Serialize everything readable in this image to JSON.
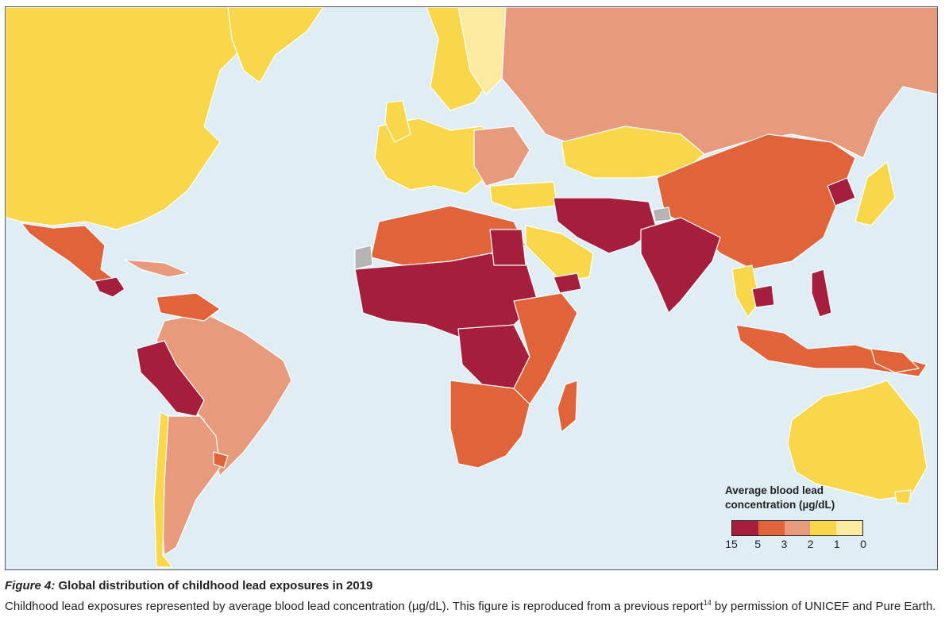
{
  "legend": {
    "title_line1": "Average blood lead",
    "title_line2": "concentration (µg/dL)",
    "ticks": [
      "15",
      "5",
      "3",
      "2",
      "1",
      "0"
    ],
    "colors": [
      "#a51f3c",
      "#e0633a",
      "#e89b7c",
      "#f8d84a",
      "#fbeaa0"
    ],
    "no_data_color": "#b4b4b4",
    "ocean_color": "#dfeef5"
  },
  "caption": {
    "figure_label": "Figure 4:",
    "title": "Global distribution of childhood lead exposures in 2019",
    "body_part1": "Childhood lead exposures represented by average blood lead concentration (µg/dL). This figure is reproduced from a previous report",
    "ref": "14",
    "body_part2": " by permission of UNICEF and Pure Earth."
  }
}
